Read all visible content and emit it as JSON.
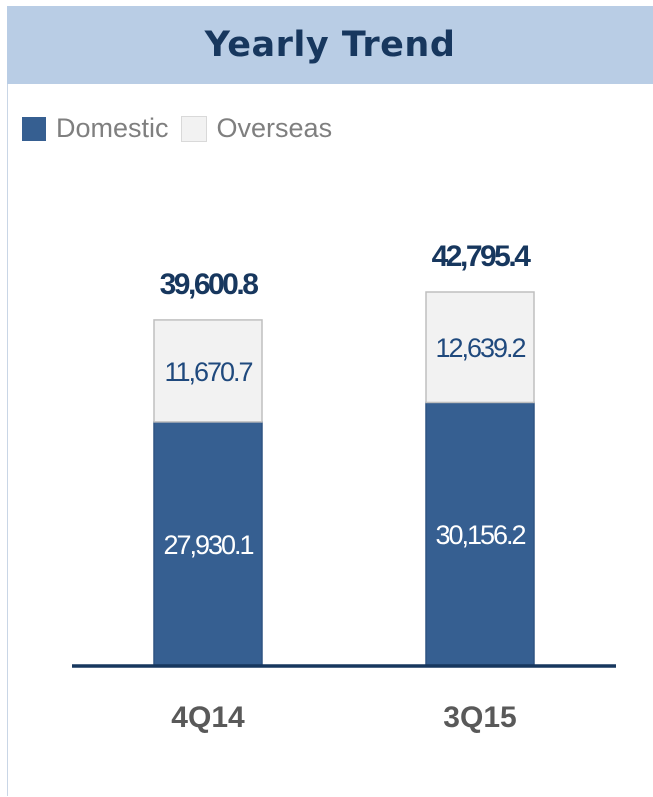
{
  "header": {
    "title": "Yearly Trend"
  },
  "colors": {
    "domestic": "#365f91",
    "overseas": "#f2f2f2",
    "header_bg": "#b9cde5",
    "title": "#17375e",
    "axis": "#17375e"
  },
  "chart_data": {
    "type": "bar",
    "stacked": true,
    "categories": [
      "4Q14",
      "3Q15"
    ],
    "series": [
      {
        "name": "Domestic",
        "values": [
          27930.1,
          30156.2
        ],
        "labels": [
          "27,930.1",
          "30,156.2"
        ]
      },
      {
        "name": "Overseas",
        "values": [
          11670.7,
          12639.2
        ],
        "labels": [
          "11,670.7",
          "12,639.2"
        ]
      }
    ],
    "totals": [
      39600.8,
      42795.4
    ],
    "total_labels": [
      "39,600.8",
      "42,795.4"
    ],
    "legend_position": "top-left",
    "grid": false
  }
}
